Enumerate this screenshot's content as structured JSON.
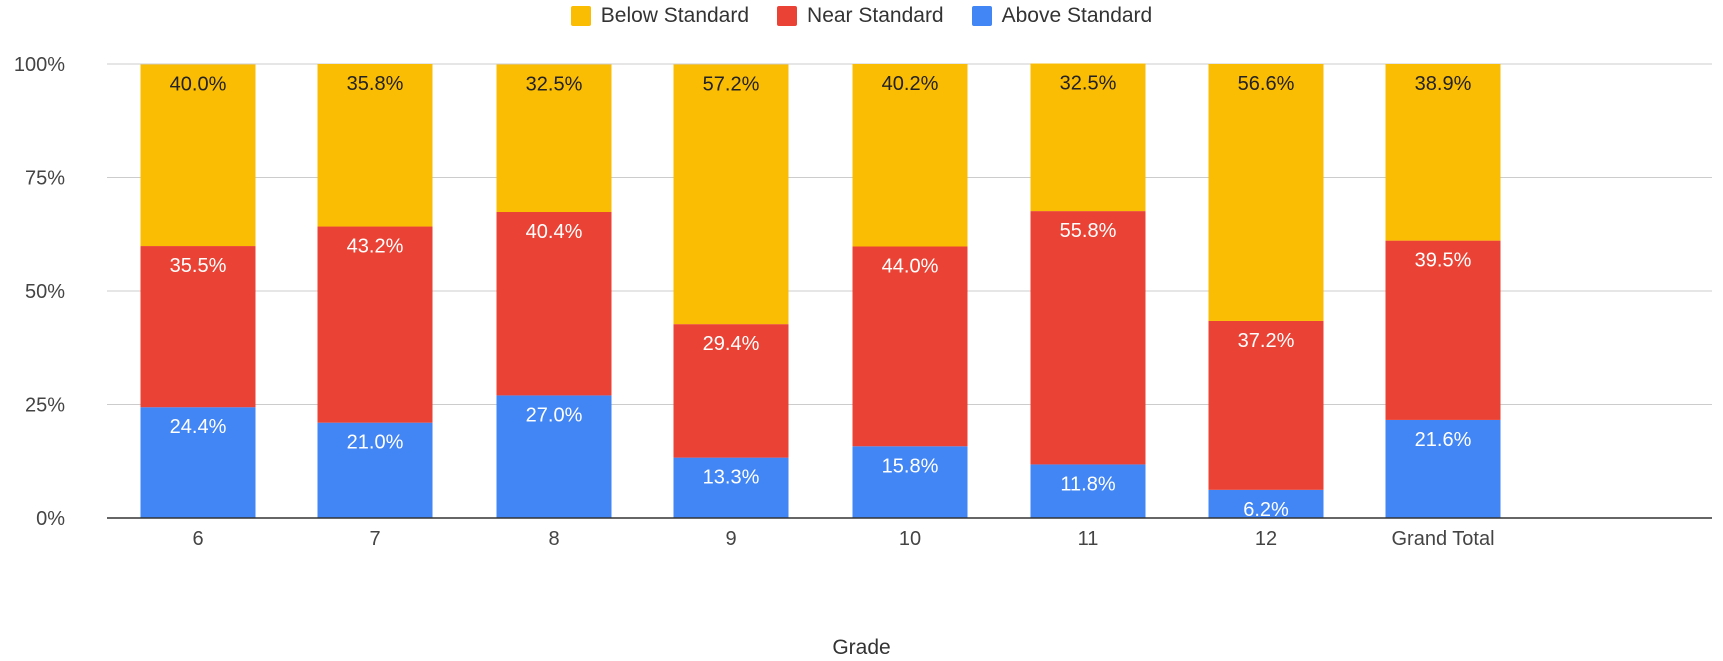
{
  "chart_data": {
    "type": "bar",
    "stacked": true,
    "percent_scale": true,
    "categories": [
      "6",
      "7",
      "8",
      "9",
      "10",
      "11",
      "12",
      "Grand Total"
    ],
    "series": [
      {
        "name": "Above Standard",
        "color": "#4285f4",
        "values": [
          24.4,
          21.0,
          27.0,
          13.3,
          15.8,
          11.8,
          6.2,
          21.6
        ],
        "labels": [
          "24.4%",
          "21.0%",
          "27.0%",
          "13.3%",
          "15.8%",
          "11.8%",
          "6.2%",
          "21.6%"
        ]
      },
      {
        "name": "Near Standard",
        "color": "#ea4335",
        "values": [
          35.5,
          43.2,
          40.4,
          29.4,
          44.0,
          55.8,
          37.2,
          39.5
        ],
        "labels": [
          "35.5%",
          "43.2%",
          "40.4%",
          "29.4%",
          "44.0%",
          "55.8%",
          "37.2%",
          "39.5%"
        ]
      },
      {
        "name": "Below Standard",
        "color": "#fbbc04",
        "values": [
          40.0,
          35.8,
          32.5,
          57.2,
          40.2,
          32.5,
          56.6,
          38.9
        ],
        "labels": [
          "40.0%",
          "35.8%",
          "32.5%",
          "57.2%",
          "40.2%",
          "32.5%",
          "56.6%",
          "38.9%"
        ]
      }
    ],
    "legend_order": [
      "Below Standard",
      "Near Standard",
      "Above Standard"
    ],
    "legend_position": "top-center",
    "xlabel": "Grade",
    "ylabel": "",
    "ylim": [
      0,
      100
    ],
    "yticks": [
      0,
      25,
      50,
      75,
      100
    ],
    "ytick_labels": [
      "0%",
      "25%",
      "50%",
      "75%",
      "100%"
    ],
    "grid": true
  }
}
